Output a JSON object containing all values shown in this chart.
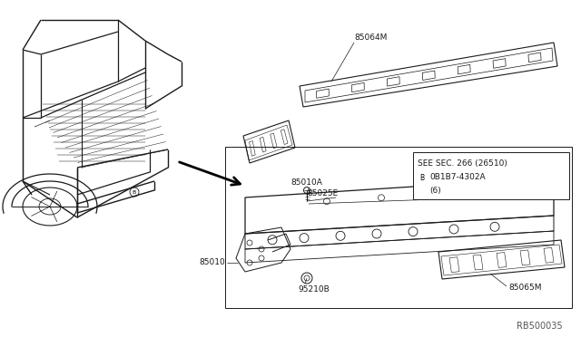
{
  "bg_color": "#ffffff",
  "line_color": "#1a1a1a",
  "diagram_id": "RB500035",
  "label_85064M": "85064M",
  "label_85010A": "85010A",
  "label_85025E": "85025E",
  "label_85010": "85010",
  "label_95210B": "95210B",
  "label_85065M": "85065M",
  "see_sec_line1": "SEE SEC. 266 (26510)",
  "see_sec_line2": "0B1B7-4302A",
  "see_sec_line3": "(6)",
  "font_size": 6.5,
  "lw_main": 0.8,
  "lw_thin": 0.5
}
